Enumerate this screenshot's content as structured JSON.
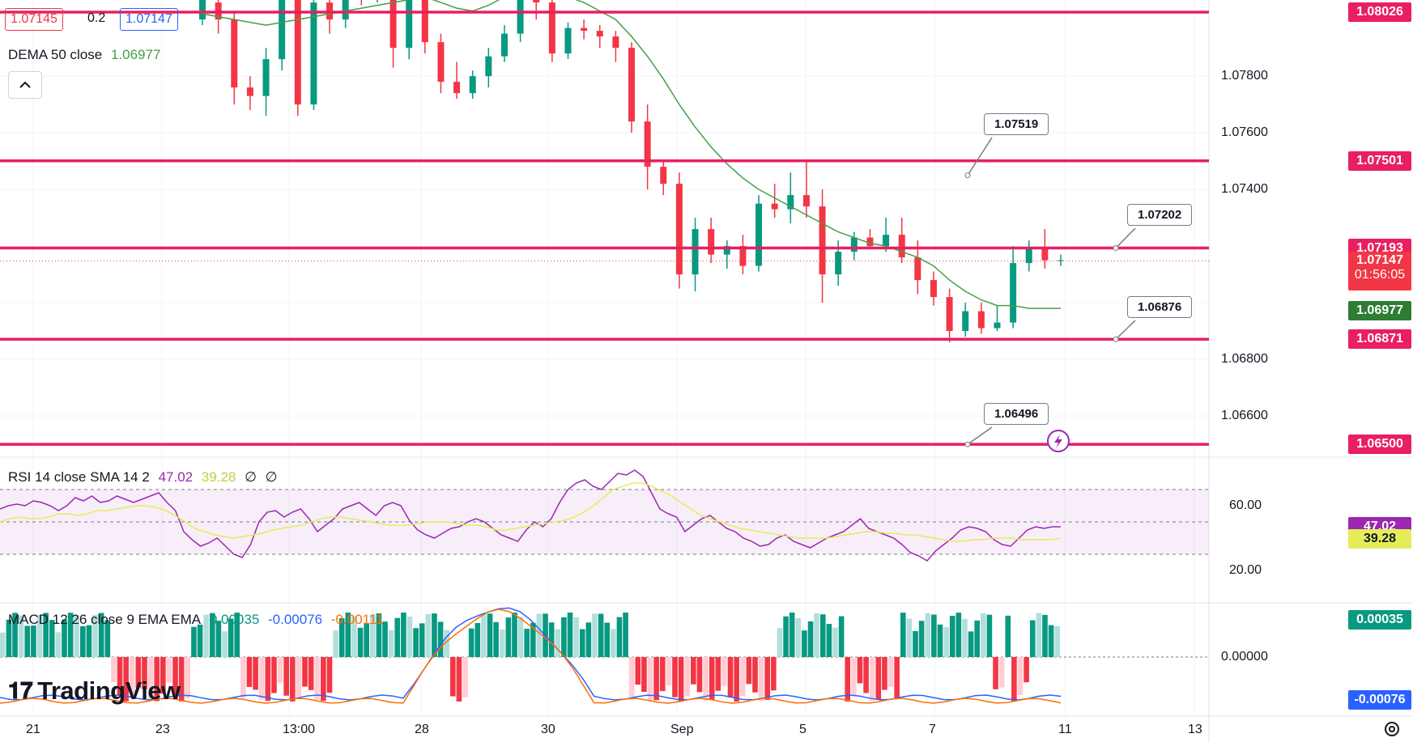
{
  "header": {
    "bid": "1.07145",
    "spread": "0.2",
    "ask": "1.07147",
    "indicator_name": "DEMA 50 close",
    "indicator_value": "1.06977"
  },
  "rsi": {
    "label": "RSI 14 close SMA 14 2",
    "value": "47.02",
    "sma": "39.28",
    "extra1": "∅",
    "extra2": "∅"
  },
  "macd": {
    "label": "MACD 12 26 close 9 EMA EMA",
    "hist": "0.00035",
    "macd": "-0.00076",
    "signal": "-0.00111"
  },
  "logo_text": "TradingView",
  "levels": [
    {
      "label": "1.08026",
      "color": "#e91e63"
    },
    {
      "label": "1.07501",
      "color": "#e91e63"
    },
    {
      "label": "1.07193",
      "color": "#e91e63"
    },
    {
      "label": "1.06871",
      "color": "#e91e63"
    },
    {
      "label": "1.06500",
      "color": "#e91e63"
    }
  ],
  "callouts": [
    "1.07519",
    "1.07202",
    "1.06876",
    "1.06496"
  ],
  "current_price": {
    "label": "1.07147",
    "countdown": "01:56:05",
    "color": "#f23645"
  },
  "dema_label": {
    "label": "1.06977",
    "color": "#2e7d32"
  },
  "price_axis": [
    "1.07800",
    "1.07600",
    "1.07400",
    "1.06800",
    "1.06600"
  ],
  "rsi_axis": [
    "60.00",
    "20.00"
  ],
  "rsi_labels": {
    "rsi": "47.02",
    "sma": "39.28"
  },
  "macd_axis": [
    "0.00000"
  ],
  "macd_labels": {
    "hist": "0.00035",
    "macd": "-0.00076"
  },
  "x_axis": [
    "21",
    "23",
    "13:00",
    "28",
    "30",
    "Sep",
    "5",
    "7",
    "11",
    "13"
  ],
  "colors": {
    "bull": "#089981",
    "bear": "#f23645",
    "dema": "#43a047",
    "rsi": "#9c27b0",
    "rsi_sma": "#e5ec5a",
    "macd": "#2962ff",
    "signal": "#ff6d00",
    "level": "#e91e63"
  },
  "chart_data": {
    "type": "candlestick",
    "symbol_pair_quote": {
      "bid": 1.07145,
      "ask": 1.07147
    },
    "ylim": [
      1.0635,
      1.0812
    ],
    "ohlc": [
      {
        "o": 1.08,
        "h": 1.0812,
        "l": 1.0798,
        "c": 1.0808
      },
      {
        "o": 1.0806,
        "h": 1.0812,
        "l": 1.0795,
        "c": 1.08
      },
      {
        "o": 1.08,
        "h": 1.0803,
        "l": 1.077,
        "c": 1.0776
      },
      {
        "o": 1.0776,
        "h": 1.078,
        "l": 1.0768,
        "c": 1.0773
      },
      {
        "o": 1.0773,
        "h": 1.079,
        "l": 1.0766,
        "c": 1.0786
      },
      {
        "o": 1.0786,
        "h": 1.0812,
        "l": 1.0782,
        "c": 1.0808
      },
      {
        "o": 1.0808,
        "h": 1.0812,
        "l": 1.0766,
        "c": 1.077
      },
      {
        "o": 1.077,
        "h": 1.0812,
        "l": 1.0768,
        "c": 1.0806
      },
      {
        "o": 1.0806,
        "h": 1.0812,
        "l": 1.0795,
        "c": 1.08
      },
      {
        "o": 1.08,
        "h": 1.0812,
        "l": 1.0797,
        "c": 1.081
      },
      {
        "o": 1.081,
        "h": 1.0812,
        "l": 1.0805,
        "c": 1.0809
      },
      {
        "o": 1.0809,
        "h": 1.0812,
        "l": 1.0806,
        "c": 1.081
      },
      {
        "o": 1.081,
        "h": 1.0812,
        "l": 1.0783,
        "c": 1.079
      },
      {
        "o": 1.079,
        "h": 1.0812,
        "l": 1.0786,
        "c": 1.0809
      },
      {
        "o": 1.0812,
        "h": 1.0812,
        "l": 1.0788,
        "c": 1.0792
      },
      {
        "o": 1.0792,
        "h": 1.0795,
        "l": 1.0774,
        "c": 1.0778
      },
      {
        "o": 1.0778,
        "h": 1.0785,
        "l": 1.0772,
        "c": 1.0774
      },
      {
        "o": 1.0774,
        "h": 1.0782,
        "l": 1.0772,
        "c": 1.078
      },
      {
        "o": 1.078,
        "h": 1.079,
        "l": 1.0776,
        "c": 1.0787
      },
      {
        "o": 1.0787,
        "h": 1.0798,
        "l": 1.0785,
        "c": 1.0795
      },
      {
        "o": 1.0795,
        "h": 1.0812,
        "l": 1.0792,
        "c": 1.0808
      },
      {
        "o": 1.0808,
        "h": 1.0812,
        "l": 1.08,
        "c": 1.0806
      },
      {
        "o": 1.0806,
        "h": 1.0808,
        "l": 1.0785,
        "c": 1.0788
      },
      {
        "o": 1.0788,
        "h": 1.0799,
        "l": 1.0786,
        "c": 1.0797
      },
      {
        "o": 1.0797,
        "h": 1.08,
        "l": 1.0793,
        "c": 1.0796
      },
      {
        "o": 1.0796,
        "h": 1.0798,
        "l": 1.079,
        "c": 1.0794
      },
      {
        "o": 1.0794,
        "h": 1.0796,
        "l": 1.0785,
        "c": 1.079
      },
      {
        "o": 1.079,
        "h": 1.0792,
        "l": 1.076,
        "c": 1.0764
      },
      {
        "o": 1.0764,
        "h": 1.077,
        "l": 1.074,
        "c": 1.0748
      },
      {
        "o": 1.0748,
        "h": 1.075,
        "l": 1.0738,
        "c": 1.0742
      },
      {
        "o": 1.0742,
        "h": 1.0746,
        "l": 1.0705,
        "c": 1.071
      },
      {
        "o": 1.071,
        "h": 1.073,
        "l": 1.0704,
        "c": 1.0726
      },
      {
        "o": 1.0726,
        "h": 1.073,
        "l": 1.0714,
        "c": 1.0717
      },
      {
        "o": 1.0717,
        "h": 1.0722,
        "l": 1.0712,
        "c": 1.072
      },
      {
        "o": 1.072,
        "h": 1.0724,
        "l": 1.071,
        "c": 1.0713
      },
      {
        "o": 1.0713,
        "h": 1.0738,
        "l": 1.0711,
        "c": 1.0735
      },
      {
        "o": 1.0735,
        "h": 1.0742,
        "l": 1.073,
        "c": 1.0733
      },
      {
        "o": 1.0733,
        "h": 1.0746,
        "l": 1.0728,
        "c": 1.0738
      },
      {
        "o": 1.0738,
        "h": 1.075,
        "l": 1.073,
        "c": 1.0734
      },
      {
        "o": 1.0734,
        "h": 1.074,
        "l": 1.07,
        "c": 1.071
      },
      {
        "o": 1.071,
        "h": 1.0722,
        "l": 1.0706,
        "c": 1.0718
      },
      {
        "o": 1.0718,
        "h": 1.0725,
        "l": 1.0715,
        "c": 1.0723
      },
      {
        "o": 1.0723,
        "h": 1.0726,
        "l": 1.0719,
        "c": 1.072
      },
      {
        "o": 1.072,
        "h": 1.073,
        "l": 1.0718,
        "c": 1.0724
      },
      {
        "o": 1.0724,
        "h": 1.073,
        "l": 1.0714,
        "c": 1.0716
      },
      {
        "o": 1.0716,
        "h": 1.0722,
        "l": 1.0703,
        "c": 1.0708
      },
      {
        "o": 1.0708,
        "h": 1.0711,
        "l": 1.0699,
        "c": 1.0702
      },
      {
        "o": 1.0702,
        "h": 1.0705,
        "l": 1.0686,
        "c": 1.069
      },
      {
        "o": 1.069,
        "h": 1.07,
        "l": 1.0688,
        "c": 1.0697
      },
      {
        "o": 1.0697,
        "h": 1.07,
        "l": 1.0689,
        "c": 1.0691
      },
      {
        "o": 1.0691,
        "h": 1.0699,
        "l": 1.069,
        "c": 1.0693
      },
      {
        "o": 1.0693,
        "h": 1.072,
        "l": 1.0691,
        "c": 1.0714
      },
      {
        "o": 1.0714,
        "h": 1.0722,
        "l": 1.0711,
        "c": 1.0719
      },
      {
        "o": 1.0719,
        "h": 1.0726,
        "l": 1.0712,
        "c": 1.0715
      },
      {
        "o": 1.0715,
        "h": 1.0717,
        "l": 1.0713,
        "c": 1.0715
      }
    ],
    "dema50": [
      1.0802,
      1.0801,
      1.08,
      1.0799,
      1.0798,
      1.0799,
      1.08,
      1.0801,
      1.0802,
      1.0803,
      1.0804,
      1.0805,
      1.0806,
      1.0807,
      1.0808,
      1.0806,
      1.0804,
      1.0803,
      1.0805,
      1.0808,
      1.0811,
      1.0812,
      1.081,
      1.0808,
      1.0806,
      1.0803,
      1.08,
      1.0794,
      1.0787,
      1.0779,
      1.077,
      1.0762,
      1.0755,
      1.0749,
      1.0744,
      1.074,
      1.0737,
      1.0734,
      1.0731,
      1.0728,
      1.0725,
      1.0723,
      1.0721,
      1.072,
      1.0718,
      1.0716,
      1.0713,
      1.0708,
      1.0704,
      1.0701,
      1.0699,
      1.0699,
      1.0698,
      1.0698,
      1.0698
    ],
    "rsi14": [
      58,
      60,
      61,
      60,
      63,
      62,
      60,
      57,
      60,
      65,
      63,
      66,
      62,
      63,
      66,
      64,
      62,
      64,
      66,
      68,
      62,
      57,
      44,
      39,
      35,
      37,
      40,
      35,
      30,
      28,
      36,
      50,
      56,
      57,
      53,
      56,
      58,
      52,
      44,
      48,
      52,
      58,
      60,
      62,
      58,
      54,
      60,
      62,
      60,
      51,
      45,
      42,
      40,
      43,
      46,
      47,
      50,
      52,
      50,
      46,
      42,
      40,
      38,
      45,
      50,
      47,
      52,
      62,
      70,
      74,
      76,
      72,
      70,
      75,
      80,
      79,
      82,
      78,
      68,
      58,
      55,
      53,
      44,
      48,
      52,
      54,
      50,
      46,
      44,
      40,
      38,
      35,
      36,
      40,
      42,
      38,
      36,
      34,
      37,
      40,
      42,
      44,
      48,
      52,
      46,
      44,
      42,
      40,
      36,
      31,
      29,
      26,
      32,
      36,
      40,
      45,
      47,
      46,
      44,
      39,
      36,
      35,
      40,
      45,
      47,
      46,
      47,
      47
    ],
    "rsi_sma": [
      50,
      52,
      53,
      52,
      52,
      53,
      55,
      55,
      54,
      55,
      57,
      57,
      58,
      59,
      60,
      60,
      59,
      57,
      54,
      50,
      46,
      44,
      42,
      41,
      40,
      41,
      42,
      43,
      45,
      46,
      47,
      48,
      50,
      52,
      53,
      53,
      52,
      51,
      50,
      49,
      48,
      48,
      48,
      49,
      50,
      50,
      50,
      49,
      48,
      48,
      47,
      45,
      45,
      46,
      47,
      48,
      49,
      50,
      51,
      53,
      56,
      60,
      65,
      70,
      72,
      74,
      74,
      72,
      69,
      66,
      62,
      58,
      54,
      52,
      50,
      48,
      46,
      45,
      44,
      43,
      42,
      41,
      40,
      40,
      40,
      40,
      41,
      42,
      43,
      44,
      44,
      43,
      43,
      42,
      42,
      41,
      40,
      39,
      38,
      38,
      39,
      39,
      40,
      40,
      40,
      39,
      39,
      39,
      39,
      40
    ],
    "macd_hist": [
      1,
      1,
      1,
      1,
      1,
      1,
      1,
      1,
      1,
      1,
      1,
      1,
      1,
      1,
      1,
      1,
      1,
      1,
      -1,
      -1,
      -1,
      -1,
      -1,
      -1,
      -1,
      -1,
      -1,
      -1,
      -1,
      -1,
      -1,
      1,
      1,
      1,
      1,
      1,
      1,
      1,
      1,
      -1,
      -1,
      -1,
      -1,
      -1,
      -1,
      -1,
      -1,
      -1,
      -1,
      -1,
      -1,
      -1,
      -1,
      -1,
      1,
      1,
      1,
      1,
      1,
      1,
      1,
      1,
      1,
      1,
      1,
      1,
      1,
      1,
      1,
      1,
      1,
      1,
      1,
      -1,
      -1,
      -1,
      1,
      1,
      1,
      1,
      1,
      1,
      1,
      1,
      1,
      1,
      1,
      1,
      1,
      1,
      1,
      1,
      1,
      1,
      1,
      1,
      1,
      1,
      1,
      1,
      1,
      1,
      -1,
      -1,
      -1,
      -1,
      -1,
      -1,
      -1,
      -1,
      -1,
      -1,
      -1,
      -1,
      -1,
      -1,
      -1,
      -1,
      -1,
      -1,
      -1,
      -1,
      -1,
      -1,
      -1,
      -1,
      1,
      1,
      1,
      1,
      1,
      1,
      1,
      1,
      1,
      1,
      1,
      -1,
      -1,
      -1,
      -1,
      -1,
      -1,
      -1,
      -1,
      -1,
      1,
      1,
      1,
      1,
      1,
      1,
      1,
      1,
      1,
      1,
      1,
      1,
      1,
      1,
      1,
      -1,
      -1,
      1,
      -1,
      -1,
      -1,
      1,
      1,
      1,
      1,
      1
    ]
  }
}
